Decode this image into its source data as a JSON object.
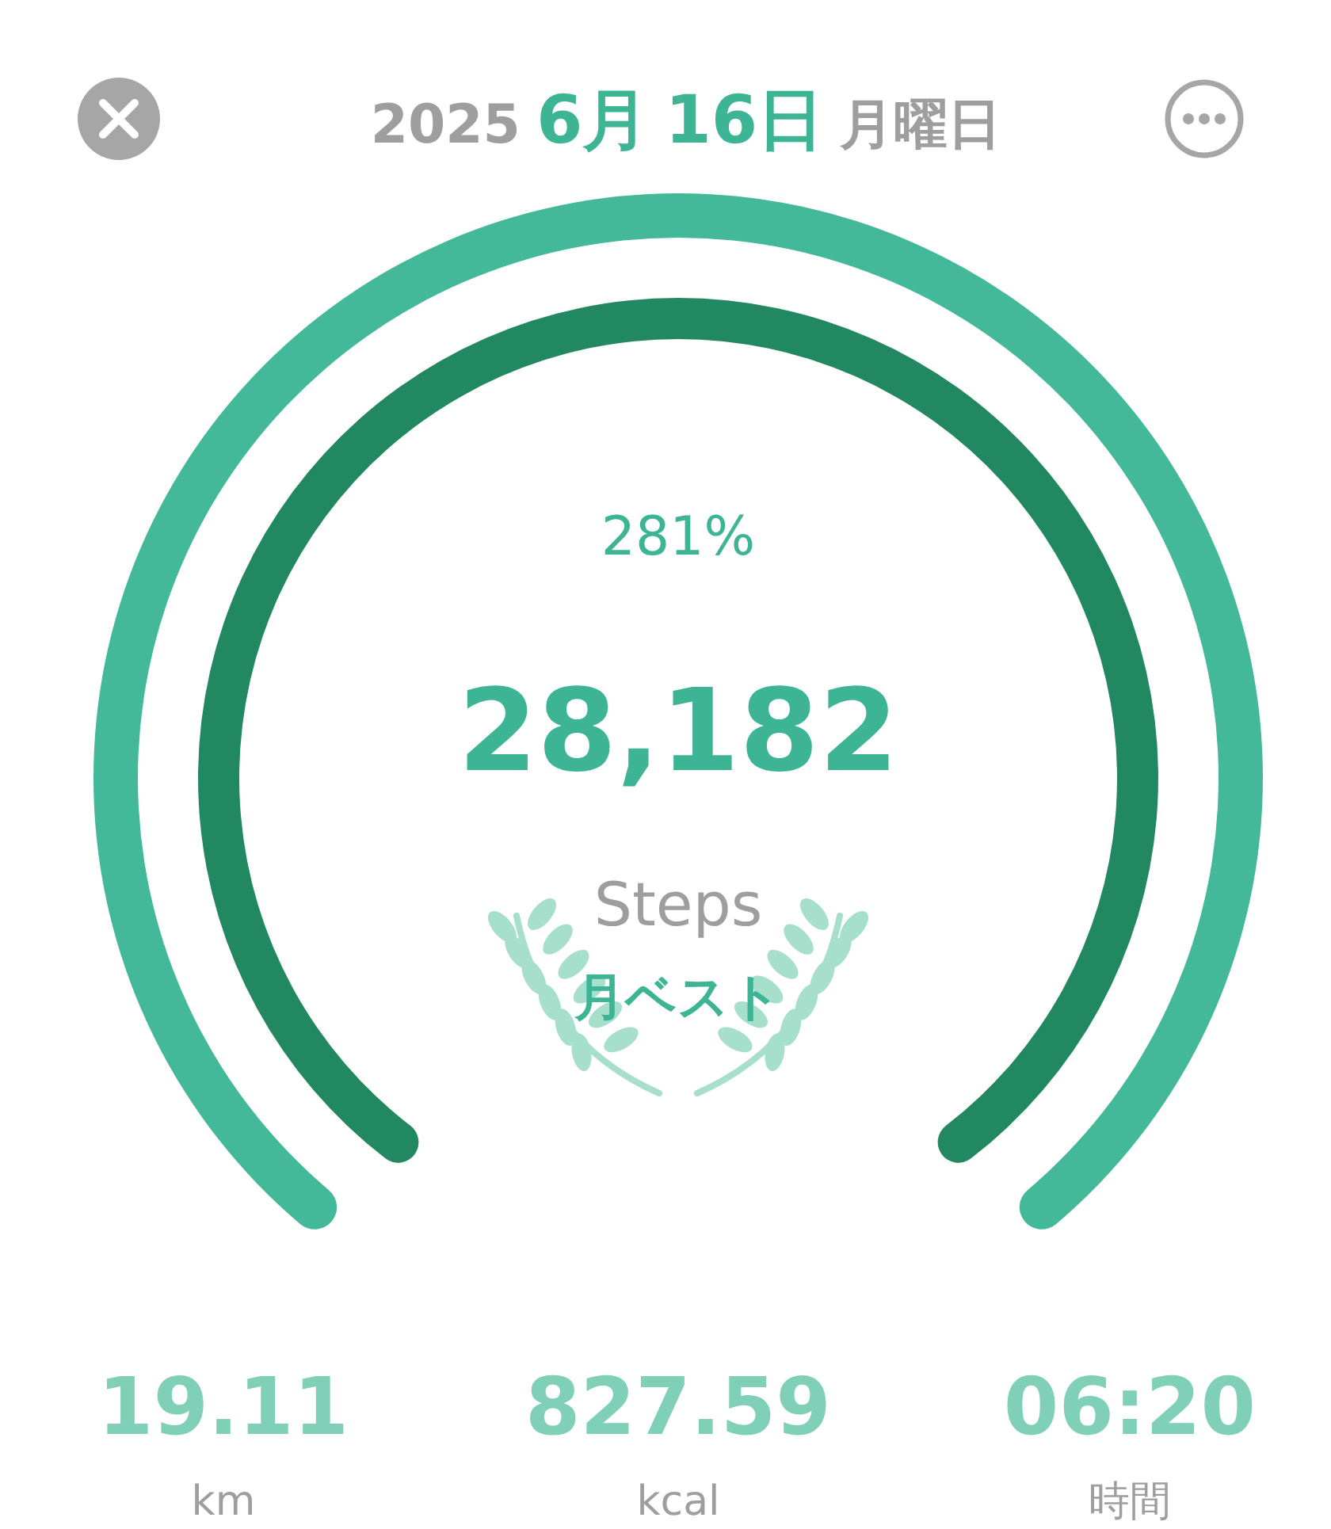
{
  "chart_data": {
    "type": "donut",
    "title": "2025 6月 16日 月曜日",
    "categories": [
      null
    ],
    "series": [
      {
        "values": [
          100
        ],
        "color": "#43b99a"
      },
      {
        "values": [
          100
        ],
        "color": "#218862"
      }
    ],
    "annotations": [
      "281%",
      "28,182",
      "Steps",
      "月ベスト",
      "19.11",
      "km",
      "827.59",
      "kcal",
      "06:20",
      "時間"
    ]
  }
}
